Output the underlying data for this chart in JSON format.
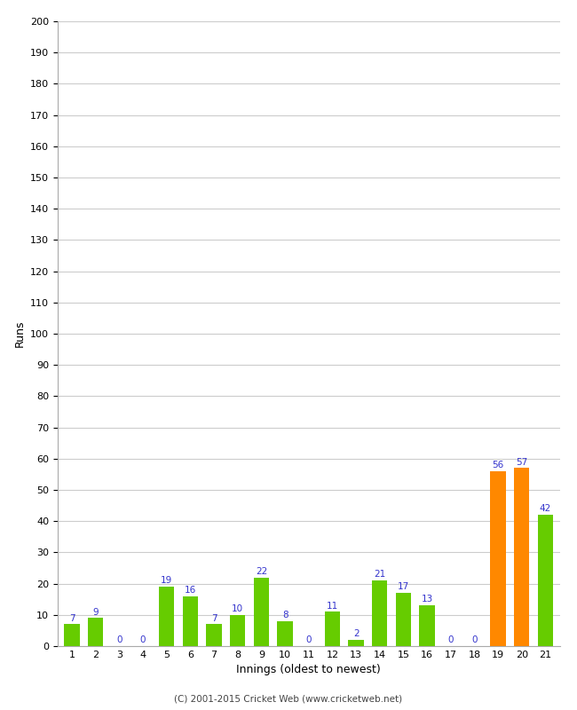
{
  "innings": [
    1,
    2,
    3,
    4,
    5,
    6,
    7,
    8,
    9,
    10,
    11,
    12,
    13,
    14,
    15,
    16,
    17,
    18,
    19,
    20,
    21
  ],
  "values": [
    7,
    9,
    0,
    0,
    19,
    16,
    7,
    10,
    22,
    8,
    0,
    11,
    2,
    21,
    17,
    13,
    0,
    0,
    56,
    57,
    42
  ],
  "colors": [
    "#66cc00",
    "#66cc00",
    "#66cc00",
    "#66cc00",
    "#66cc00",
    "#66cc00",
    "#66cc00",
    "#66cc00",
    "#66cc00",
    "#66cc00",
    "#66cc00",
    "#66cc00",
    "#66cc00",
    "#66cc00",
    "#66cc00",
    "#66cc00",
    "#66cc00",
    "#66cc00",
    "#ff8800",
    "#ff8800",
    "#66cc00"
  ],
  "xlabel": "Innings (oldest to newest)",
  "ylabel": "Runs",
  "ylim": [
    0,
    200
  ],
  "yticks": [
    0,
    10,
    20,
    30,
    40,
    50,
    60,
    70,
    80,
    90,
    100,
    110,
    120,
    130,
    140,
    150,
    160,
    170,
    180,
    190,
    200
  ],
  "label_color": "#3333cc",
  "footer": "(C) 2001-2015 Cricket Web (www.cricketweb.net)",
  "bg_color": "#ffffff",
  "grid_color": "#cccccc",
  "bar_width": 0.65
}
